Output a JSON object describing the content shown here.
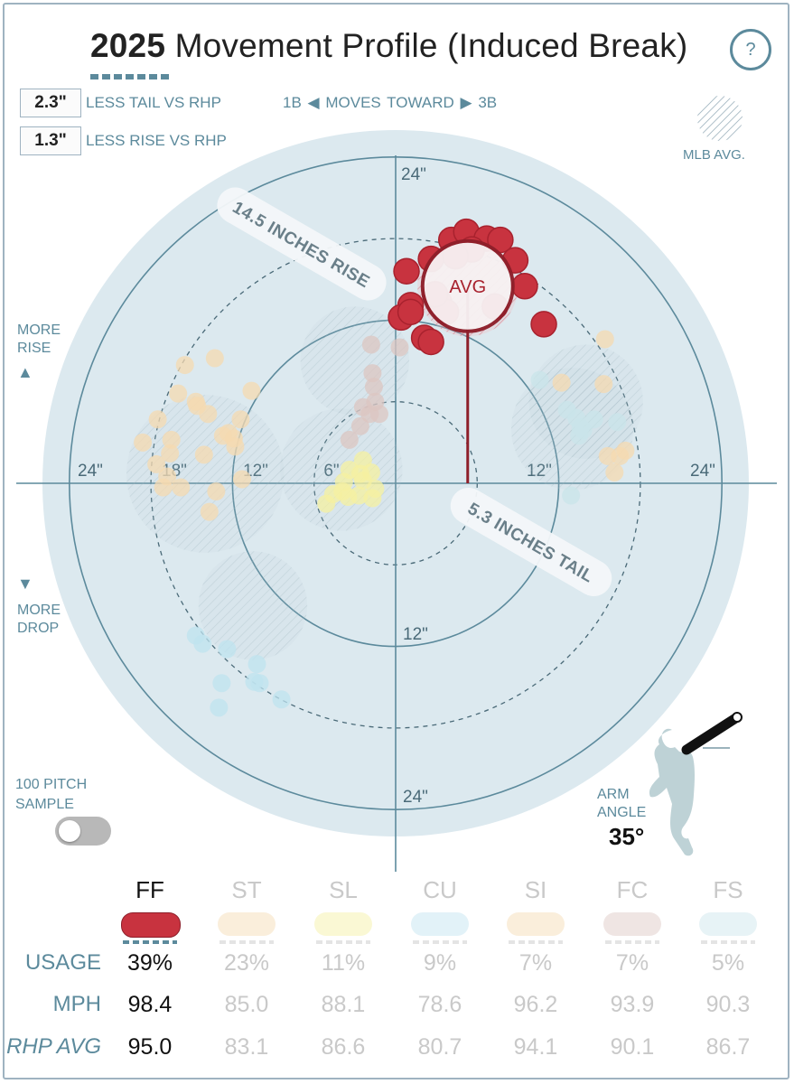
{
  "title": {
    "year": "2025",
    "text": "Movement Profile (Induced Break)"
  },
  "help_icon": "?",
  "stats": [
    {
      "value": "2.3\"",
      "label": "LESS TAIL VS RHP"
    },
    {
      "value": "1.3\"",
      "label": "LESS RISE VS RHP"
    }
  ],
  "moves_toward": {
    "left": "1B",
    "text": "MOVES TOWARD",
    "right": "3B"
  },
  "mlb_avg_label": "MLB AVG.",
  "more_rise": [
    "MORE",
    "RISE"
  ],
  "more_drop": [
    "MORE",
    "DROP"
  ],
  "sample_toggle": {
    "label": [
      "100 PITCH",
      "SAMPLE"
    ],
    "on": false
  },
  "arm_angle": {
    "label": [
      "ARM",
      "ANGLE"
    ],
    "value": "35°",
    "degrees": 35
  },
  "chart_data": {
    "type": "scatter",
    "title": "2025 Movement Profile (Induced Break)",
    "xlabel": "1B ◀ MOVES TOWARD ▶ 3B",
    "ylabel": "",
    "xlim": [
      -24,
      24
    ],
    "ylim": [
      -24,
      24
    ],
    "ring_labels": {
      "top": "24\"",
      "bottom": "24\"",
      "inner_bottom": "12\"",
      "left_outer": "24\"",
      "left_18": "18\"",
      "left_12": "12\"",
      "left_6": "6\"",
      "right_12": "12\"",
      "right_outer": "24\""
    },
    "avg_label": "AVG",
    "annotations": {
      "rise": "14.5 INCHES RISE",
      "tail": "5.3 INCHES TAIL"
    },
    "primary_avg": {
      "x": 5.3,
      "y": 14.5
    },
    "series": [
      {
        "name": "FF",
        "color": "#c8333f",
        "avg": [
          5.3,
          14.5
        ],
        "points": [
          [
            0.8,
            15.6
          ],
          [
            2.6,
            16.5
          ],
          [
            4.1,
            17.9
          ],
          [
            5.2,
            18.5
          ],
          [
            6.7,
            18.0
          ],
          [
            7.7,
            17.9
          ],
          [
            8.8,
            16.4
          ],
          [
            9.5,
            14.5
          ],
          [
            7.3,
            13.0
          ],
          [
            1.1,
            13.1
          ],
          [
            3.2,
            13.3
          ],
          [
            3.7,
            12.6
          ],
          [
            0.4,
            12.2
          ],
          [
            1.1,
            12.6
          ],
          [
            2.1,
            10.7
          ],
          [
            2.6,
            10.4
          ],
          [
            10.9,
            11.7
          ],
          [
            5.6,
            17.2
          ],
          [
            4.4,
            16.7
          ],
          [
            2.9,
            13.9
          ]
        ]
      },
      {
        "name": "ST",
        "color": "#f5d9b0",
        "avg": [
          -14,
          0.7
        ],
        "points": [
          [
            -15.5,
            8.7
          ],
          [
            -13.3,
            9.2
          ],
          [
            -16.0,
            6.6
          ],
          [
            -14.7,
            6.0
          ],
          [
            -10.6,
            6.8
          ],
          [
            -13.8,
            5.1
          ],
          [
            -14.6,
            5.7
          ],
          [
            -11.4,
            4.7
          ],
          [
            -12.3,
            3.7
          ],
          [
            -11.8,
            2.7
          ],
          [
            -17.5,
            4.7
          ],
          [
            -18.6,
            3.0
          ],
          [
            -16.5,
            3.2
          ],
          [
            -16.6,
            2.2
          ],
          [
            -14.1,
            2.1
          ],
          [
            -17.6,
            1.4
          ],
          [
            -16.8,
            0.5
          ],
          [
            -17.1,
            -0.3
          ],
          [
            -15.8,
            -0.3
          ],
          [
            -13.2,
            -0.6
          ],
          [
            -11.3,
            0.3
          ],
          [
            -13.7,
            -2.1
          ],
          [
            -11.9,
            3.3
          ],
          [
            -12.7,
            3.5
          ]
        ]
      },
      {
        "name": "SL",
        "color": "#f5f0a0",
        "avg": [
          -4,
          1
        ],
        "points": [
          [
            -3.4,
            1.0
          ],
          [
            -2.4,
            1.7
          ],
          [
            -2.6,
            0.7
          ],
          [
            -2.7,
            -0.9
          ],
          [
            -3.9,
            -0.6
          ],
          [
            -5.1,
            -1.5
          ],
          [
            -4.6,
            -0.8
          ],
          [
            -3.5,
            -1.0
          ],
          [
            -2.4,
            0.2
          ],
          [
            -1.8,
            0.8
          ],
          [
            -1.5,
            -0.4
          ],
          [
            -1.7,
            -1.1
          ],
          [
            -3.8,
            0.1
          ]
        ]
      },
      {
        "name": "CU",
        "color": "#bfe3ef",
        "avg": [
          -10.5,
          -9
        ],
        "points": [
          [
            -14.7,
            -11.2
          ],
          [
            -14.2,
            -11.8
          ],
          [
            -12.4,
            -12.2
          ],
          [
            -10.2,
            -13.3
          ],
          [
            -10.4,
            -14.6
          ],
          [
            -10.0,
            -14.7
          ],
          [
            -12.8,
            -14.7
          ],
          [
            -8.4,
            -15.9
          ],
          [
            -13.0,
            -16.5
          ]
        ]
      },
      {
        "name": "SI",
        "color": "#f5d9b0",
        "avg": [
          14,
          6
        ],
        "points": [
          [
            15.4,
            10.6
          ],
          [
            12.2,
            7.4
          ],
          [
            15.3,
            7.3
          ],
          [
            15.6,
            2.0
          ],
          [
            16.5,
            2.0
          ],
          [
            16.9,
            2.4
          ],
          [
            16.1,
            0.8
          ]
        ]
      },
      {
        "name": "FC",
        "color": "#dcc6c2",
        "avg": [
          -3,
          9
        ],
        "points": [
          [
            -1.8,
            10.2
          ],
          [
            -1.7,
            8.1
          ],
          [
            -1.6,
            7.1
          ],
          [
            -1.9,
            5.1
          ],
          [
            -2.4,
            5.6
          ],
          [
            -1.2,
            5.1
          ],
          [
            -2.6,
            4.2
          ],
          [
            -3.4,
            3.2
          ],
          [
            0.3,
            10.0
          ],
          [
            -1.5,
            6.0
          ]
        ]
      },
      {
        "name": "FS",
        "color": "#c9e4ea",
        "avg": [
          13,
          4
        ],
        "points": [
          [
            10.6,
            7.6
          ],
          [
            13.3,
            4.8
          ],
          [
            13.5,
            3.5
          ],
          [
            13.8,
            3.9
          ],
          [
            13.6,
            4.1
          ],
          [
            14.6,
            4.7
          ],
          [
            16.3,
            4.5
          ],
          [
            12.6,
            5.4
          ],
          [
            12.9,
            -0.9
          ]
        ]
      }
    ]
  },
  "pitch_table": {
    "row_labels": [
      "USAGE",
      "MPH",
      "RHP AVG"
    ],
    "columns": [
      {
        "name": "FF",
        "usage": "39%",
        "mph": "98.4",
        "rhp_avg": "95.0",
        "color": "#c8333f",
        "active": true
      },
      {
        "name": "ST",
        "usage": "23%",
        "mph": "85.0",
        "rhp_avg": "83.1",
        "color": "#f5d9b0",
        "active": false
      },
      {
        "name": "SL",
        "usage": "11%",
        "mph": "88.1",
        "rhp_avg": "86.6",
        "color": "#f5f0a0",
        "active": false
      },
      {
        "name": "CU",
        "usage": "9%",
        "mph": "78.6",
        "rhp_avg": "80.7",
        "color": "#bfe3ef",
        "active": false
      },
      {
        "name": "SI",
        "usage": "7%",
        "mph": "96.2",
        "rhp_avg": "94.1",
        "color": "#f5d9b0",
        "active": false
      },
      {
        "name": "FC",
        "usage": "7%",
        "mph": "93.9",
        "rhp_avg": "90.1",
        "color": "#dcc6c2",
        "active": false
      },
      {
        "name": "FS",
        "usage": "5%",
        "mph": "90.3",
        "rhp_avg": "86.7",
        "color": "#c9e4ea",
        "active": false
      }
    ]
  },
  "colors": {
    "accent": "#c8333f",
    "axis": "#5c8a9c",
    "plate": "#dce9ef",
    "muted_text": "#c9c9c9"
  }
}
